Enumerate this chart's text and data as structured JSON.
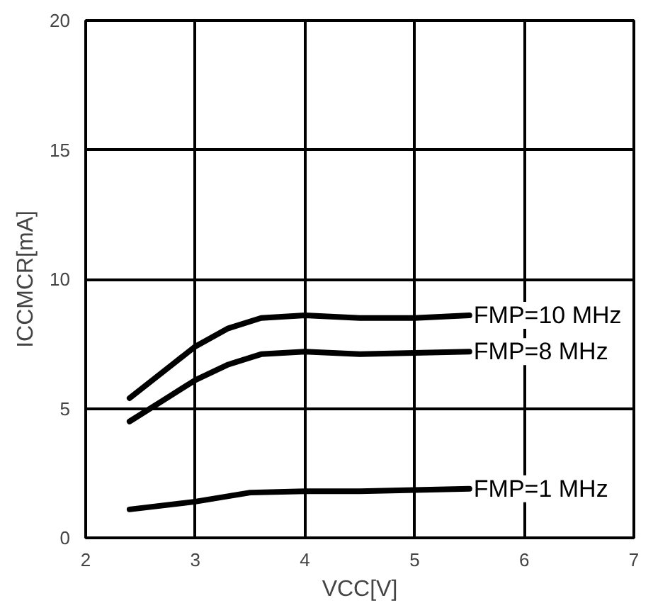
{
  "chart_data": {
    "type": "line",
    "xlabel": "VCC[V]",
    "ylabel": "ICCMCR[mA]",
    "xlim": [
      2,
      7
    ],
    "xticks": [
      2,
      3,
      4,
      5,
      6,
      7
    ],
    "ylim": [
      0,
      20
    ],
    "yticks": [
      0,
      5,
      10,
      15,
      20
    ],
    "grid": true,
    "marker": "none",
    "line_style": "solid",
    "series": [
      {
        "name": "FMP=10 MHz",
        "color": "#000000",
        "x": [
          2.4,
          2.7,
          3.0,
          3.3,
          3.6,
          4.0,
          4.5,
          5.0,
          5.5
        ],
        "values": [
          5.4,
          6.4,
          7.4,
          8.1,
          8.5,
          8.6,
          8.5,
          8.5,
          8.6
        ]
      },
      {
        "name": "FMP=8 MHz",
        "color": "#000000",
        "x": [
          2.4,
          2.7,
          3.0,
          3.3,
          3.6,
          4.0,
          4.5,
          5.0,
          5.5
        ],
        "values": [
          4.5,
          5.3,
          6.1,
          6.7,
          7.1,
          7.2,
          7.1,
          7.15,
          7.2
        ]
      },
      {
        "name": "FMP=1 MHz",
        "color": "#000000",
        "x": [
          2.4,
          3.0,
          3.5,
          4.0,
          4.5,
          5.0,
          5.5
        ],
        "values": [
          1.1,
          1.4,
          1.75,
          1.8,
          1.8,
          1.85,
          1.9
        ]
      }
    ]
  }
}
